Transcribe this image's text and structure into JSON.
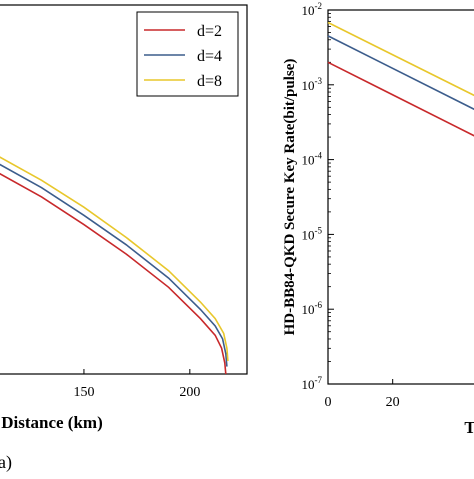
{
  "chart_data": [
    {
      "type": "line",
      "title": "",
      "xlabel": "Distance (km)",
      "ylabel": "",
      "xlim": [
        108,
        227
      ],
      "ylim": [
        0,
        1
      ],
      "x_ticks": [
        150,
        200
      ],
      "grid": false,
      "legend_position": "top-right",
      "series": [
        {
          "name": "d=2",
          "color": "#c8292b",
          "points": [
            [
              108,
              0.55
            ],
            [
              130,
              0.48
            ],
            [
              150,
              0.405
            ],
            [
              170,
              0.325
            ],
            [
              190,
              0.235
            ],
            [
              205,
              0.15
            ],
            [
              212,
              0.105
            ],
            [
              215,
              0.07
            ],
            [
              216.5,
              0.03
            ],
            [
              217,
              0.0
            ]
          ]
        },
        {
          "name": "d=4",
          "color": "#3c5d8c",
          "points": [
            [
              108,
              0.575
            ],
            [
              130,
              0.505
            ],
            [
              150,
              0.43
            ],
            [
              170,
              0.35
            ],
            [
              190,
              0.26
            ],
            [
              205,
              0.175
            ],
            [
              212,
              0.13
            ],
            [
              215.5,
              0.095
            ],
            [
              217,
              0.055
            ],
            [
              217.5,
              0.02
            ]
          ]
        },
        {
          "name": "d=8",
          "color": "#e8c72c",
          "points": [
            [
              108,
              0.595
            ],
            [
              130,
              0.525
            ],
            [
              150,
              0.452
            ],
            [
              170,
              0.37
            ],
            [
              190,
              0.28
            ],
            [
              205,
              0.195
            ],
            [
              212,
              0.15
            ],
            [
              216,
              0.11
            ],
            [
              217.5,
              0.07
            ],
            [
              218,
              0.035
            ]
          ]
        }
      ],
      "legend": [
        "d=2",
        "d=4",
        "d=8"
      ]
    },
    {
      "type": "line",
      "title": "",
      "xlabel": "T",
      "ylabel": "HD-BB84-QKD Secure Key Rate(bit/pulse)",
      "xlim": [
        0,
        47
      ],
      "ylim": [
        1e-07,
        0.01
      ],
      "yscale": "log",
      "x_ticks": [
        0,
        20
      ],
      "y_ticks": [
        1e-07,
        1e-06,
        1e-05,
        0.0001,
        0.001,
        0.01
      ],
      "y_tick_labels": [
        {
          "base": "10",
          "exp": "-7"
        },
        {
          "base": "10",
          "exp": "-6"
        },
        {
          "base": "10",
          "exp": "-5"
        },
        {
          "base": "10",
          "exp": "-4"
        },
        {
          "base": "10",
          "exp": "-3"
        },
        {
          "base": "10",
          "exp": "-2"
        }
      ],
      "grid": false,
      "series": [
        {
          "color": "#c8292b",
          "points": [
            [
              0,
              0.002
            ],
            [
              47,
              0.00019
            ]
          ]
        },
        {
          "color": "#3c5d8c",
          "points": [
            [
              0,
              0.0045
            ],
            [
              47,
              0.00043
            ]
          ]
        },
        {
          "color": "#e8c72c",
          "points": [
            [
              0,
              0.0068
            ],
            [
              47,
              0.00066
            ]
          ]
        }
      ]
    }
  ],
  "labels": {
    "panel_a": "a)"
  }
}
